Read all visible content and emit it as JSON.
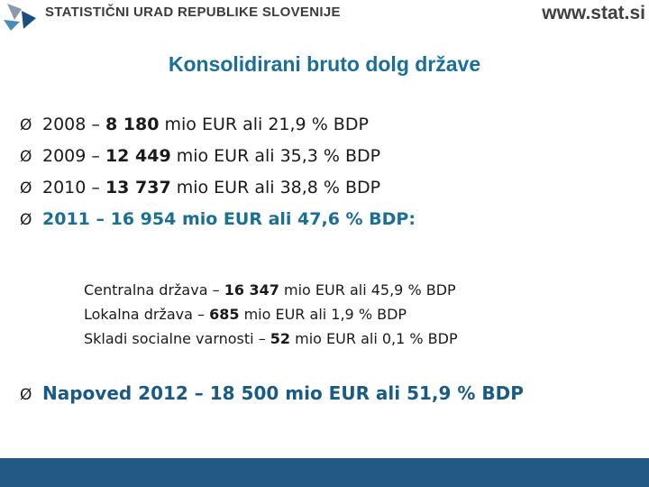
{
  "header": {
    "org_name": "STATISTIČNI URAD REPUBLIKE SLOVENIJE",
    "url": "www.stat.si"
  },
  "title": "Konsolidirani bruto dolg države",
  "bullets": [
    {
      "year": "2008",
      "dash": "–",
      "amount": "8 180",
      "rest": "mio EUR ali 21,9 % BDP"
    },
    {
      "year": "2009",
      "dash": "–",
      "amount": "12 449",
      "rest": "mio EUR ali 35,3 % BDP"
    },
    {
      "year": "2010",
      "dash": "–",
      "amount": "13 737",
      "rest": "mio EUR ali 38,8 % BDP"
    }
  ],
  "highlight": "2011 – 16 954 mio EUR ali 47,6 % BDP:",
  "sub_items": [
    {
      "label": "Centralna država –",
      "amount": "16 347",
      "rest": "mio EUR ali 45,9 % BDP"
    },
    {
      "label": "Lokalna država –",
      "amount": "685",
      "rest": "mio EUR ali 1,9 % BDP"
    },
    {
      "label": "Skladi socialne varnosti –",
      "amount": "52",
      "rest": "mio EUR ali 0,1 % BDP"
    }
  ],
  "forecast": "Napoved 2012 – 18 500 mio EUR ali  51,9 % BDP",
  "bullet_glyph": "Ø",
  "colors": {
    "title": "#1a6f98",
    "highlight": "#1a6f98",
    "forecast": "#1a5b86",
    "footer": "#225a85"
  }
}
